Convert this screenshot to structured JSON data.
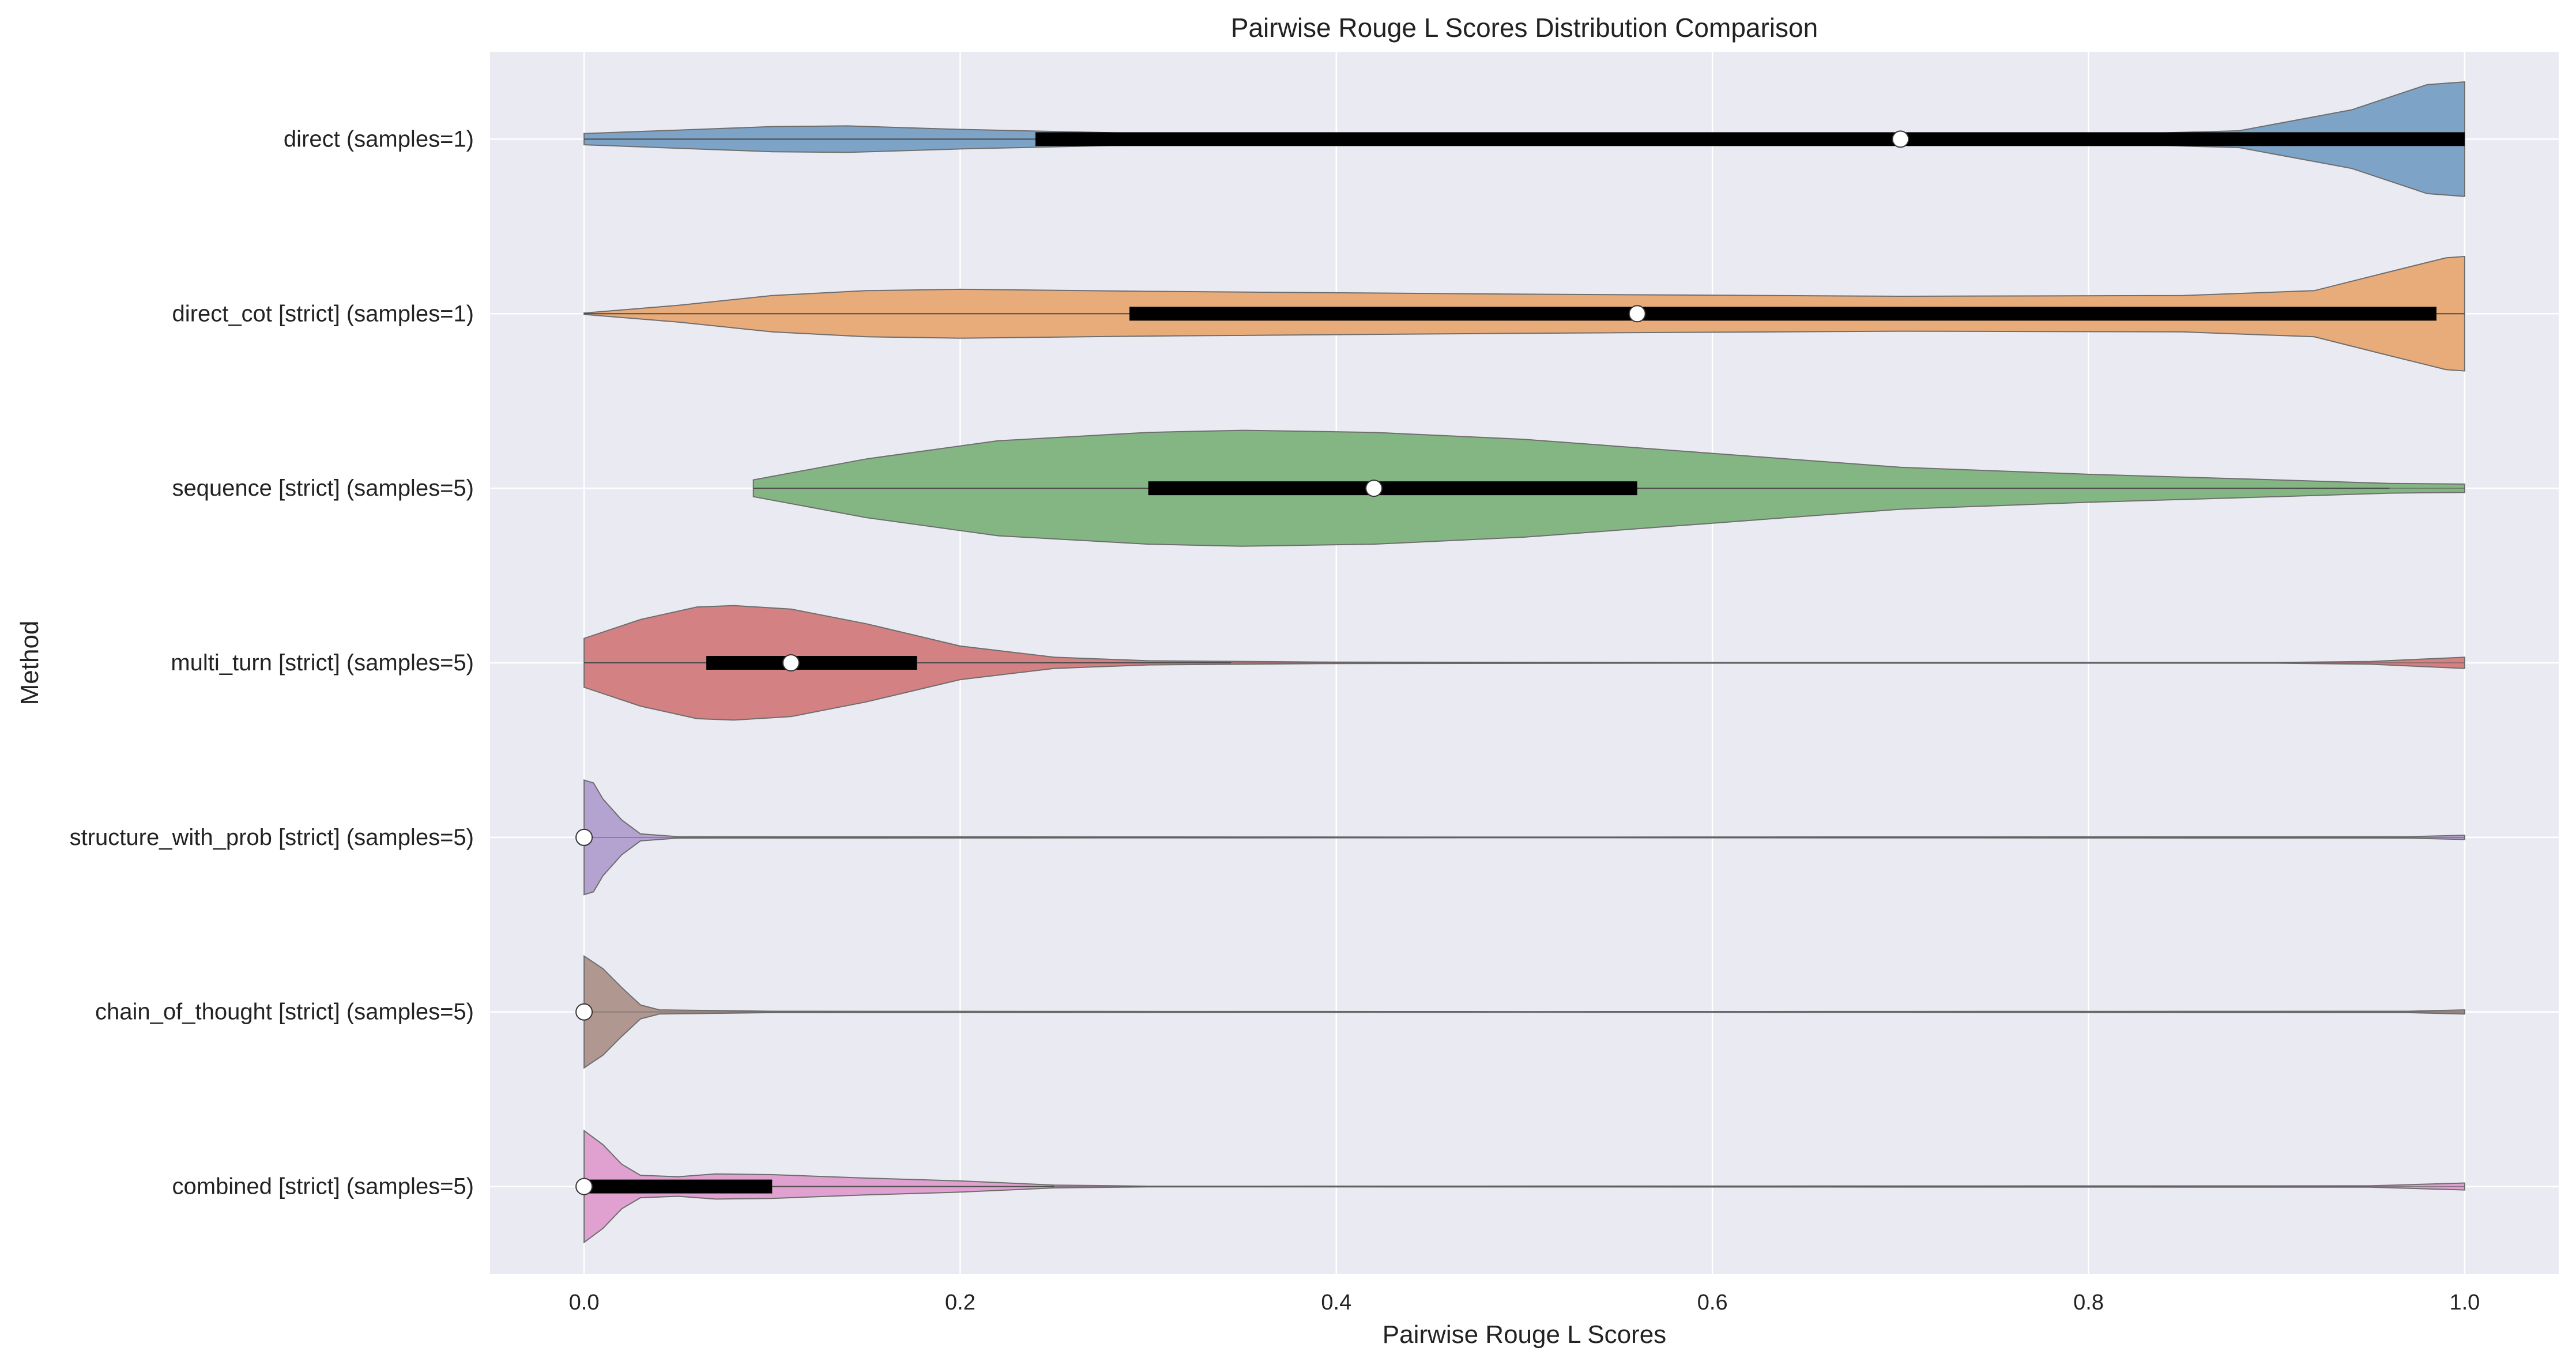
{
  "chart_data": {
    "type": "violin",
    "orientation": "horizontal",
    "title": "Pairwise Rouge L Scores Distribution Comparison",
    "xlabel": "Pairwise Rouge L Scores",
    "ylabel": "Method",
    "xlim": [
      -0.05,
      1.05
    ],
    "xticks": [
      0.0,
      0.2,
      0.4,
      0.6,
      0.8,
      1.0
    ],
    "xtick_labels": [
      "0.0",
      "0.2",
      "0.4",
      "0.6",
      "0.8",
      "1.0"
    ],
    "grid": true,
    "background": "#eaeaf2",
    "series": [
      {
        "name": "direct (samples=1)",
        "color": "#7aa2c6",
        "median": 0.7,
        "q1": 0.24,
        "q3": 1.0,
        "whisker": [
          0.0,
          1.0
        ],
        "density": [
          [
            0.0,
            0.08
          ],
          [
            0.05,
            0.13
          ],
          [
            0.1,
            0.18
          ],
          [
            0.14,
            0.19
          ],
          [
            0.2,
            0.14
          ],
          [
            0.3,
            0.08
          ],
          [
            0.5,
            0.05
          ],
          [
            0.7,
            0.05
          ],
          [
            0.8,
            0.06
          ],
          [
            0.88,
            0.12
          ],
          [
            0.94,
            0.42
          ],
          [
            0.98,
            0.78
          ],
          [
            1.0,
            0.82
          ]
        ]
      },
      {
        "name": "direct_cot [strict] (samples=1)",
        "color": "#e8aa77",
        "median": 0.56,
        "q1": 0.29,
        "q3": 0.985,
        "whisker": [
          0.0,
          1.0
        ],
        "density": [
          [
            0.0,
            0.01
          ],
          [
            0.05,
            0.12
          ],
          [
            0.1,
            0.26
          ],
          [
            0.15,
            0.33
          ],
          [
            0.2,
            0.35
          ],
          [
            0.3,
            0.32
          ],
          [
            0.5,
            0.28
          ],
          [
            0.7,
            0.25
          ],
          [
            0.85,
            0.26
          ],
          [
            0.92,
            0.33
          ],
          [
            0.96,
            0.6
          ],
          [
            0.99,
            0.8
          ],
          [
            1.0,
            0.82
          ]
        ]
      },
      {
        "name": "sequence [strict] (samples=5)",
        "color": "#82b582",
        "median": 0.42,
        "q1": 0.3,
        "q3": 0.56,
        "whisker": [
          0.09,
          0.96
        ],
        "density": [
          [
            0.09,
            0.12
          ],
          [
            0.15,
            0.42
          ],
          [
            0.22,
            0.68
          ],
          [
            0.3,
            0.8
          ],
          [
            0.35,
            0.83
          ],
          [
            0.42,
            0.8
          ],
          [
            0.5,
            0.7
          ],
          [
            0.6,
            0.5
          ],
          [
            0.7,
            0.3
          ],
          [
            0.8,
            0.2
          ],
          [
            0.9,
            0.12
          ],
          [
            0.96,
            0.07
          ],
          [
            1.0,
            0.06
          ]
        ]
      },
      {
        "name": "multi_turn [strict] (samples=5)",
        "color": "#d27e7f",
        "median": 0.11,
        "q1": 0.065,
        "q3": 0.177,
        "whisker": [
          0.0,
          0.344
        ],
        "density": [
          [
            0.0,
            0.35
          ],
          [
            0.03,
            0.62
          ],
          [
            0.06,
            0.8
          ],
          [
            0.08,
            0.82
          ],
          [
            0.11,
            0.77
          ],
          [
            0.15,
            0.56
          ],
          [
            0.2,
            0.24
          ],
          [
            0.25,
            0.08
          ],
          [
            0.3,
            0.03
          ],
          [
            0.4,
            0.01
          ],
          [
            0.6,
            0.005
          ],
          [
            0.9,
            0.005
          ],
          [
            0.95,
            0.02
          ],
          [
            1.0,
            0.08
          ]
        ]
      },
      {
        "name": "structure_with_prob [strict] (samples=5)",
        "color": "#b3a0cf",
        "median": 0.0,
        "q1": 0.0,
        "q3": 0.0,
        "whisker": [
          0.0,
          0.0
        ],
        "density": [
          [
            0.0,
            0.82
          ],
          [
            0.005,
            0.78
          ],
          [
            0.01,
            0.55
          ],
          [
            0.02,
            0.25
          ],
          [
            0.03,
            0.05
          ],
          [
            0.05,
            0.01
          ],
          [
            0.5,
            0.005
          ],
          [
            0.97,
            0.01
          ],
          [
            1.0,
            0.03
          ]
        ]
      },
      {
        "name": "chain_of_thought [strict] (samples=5)",
        "color": "#ae958e",
        "median": 0.0,
        "q1": 0.0,
        "q3": 0.0,
        "whisker": [
          0.0,
          0.0
        ],
        "density": [
          [
            0.0,
            0.8
          ],
          [
            0.01,
            0.62
          ],
          [
            0.02,
            0.35
          ],
          [
            0.03,
            0.1
          ],
          [
            0.04,
            0.03
          ],
          [
            0.1,
            0.01
          ],
          [
            0.5,
            0.005
          ],
          [
            0.97,
            0.01
          ],
          [
            1.0,
            0.03
          ]
        ]
      },
      {
        "name": "combined [strict] (samples=5)",
        "color": "#df9fcf",
        "median": 0.0,
        "q1": 0.0,
        "q3": 0.1,
        "whisker": [
          0.0,
          0.25
        ],
        "density": [
          [
            0.0,
            0.8
          ],
          [
            0.01,
            0.6
          ],
          [
            0.02,
            0.32
          ],
          [
            0.03,
            0.16
          ],
          [
            0.05,
            0.14
          ],
          [
            0.07,
            0.18
          ],
          [
            0.1,
            0.17
          ],
          [
            0.15,
            0.12
          ],
          [
            0.2,
            0.08
          ],
          [
            0.25,
            0.02
          ],
          [
            0.3,
            0.005
          ],
          [
            0.95,
            0.01
          ],
          [
            1.0,
            0.05
          ]
        ]
      }
    ]
  }
}
